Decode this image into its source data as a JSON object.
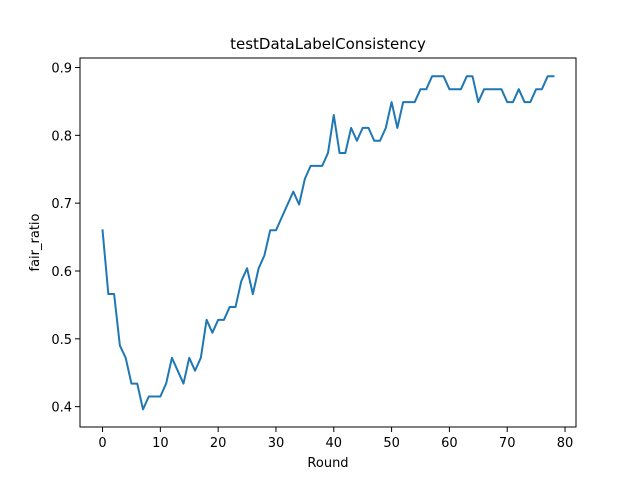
{
  "chart_data": {
    "type": "line",
    "title": "testDataLabelConsistency",
    "xlabel": "Round",
    "ylabel": "fair_ratio",
    "xlim": [
      -3.9,
      81.9
    ],
    "ylim": [
      0.37,
      0.914
    ],
    "xticks": [
      0,
      10,
      20,
      30,
      40,
      50,
      60,
      70,
      80
    ],
    "yticks": [
      0.4,
      0.5,
      0.6,
      0.7,
      0.8,
      0.9
    ],
    "ytick_labels": [
      "0.4",
      "0.5",
      "0.6",
      "0.7",
      "0.8",
      "0.9"
    ],
    "grid": false,
    "legend": "none",
    "line_color": "#1f77b4",
    "series": [
      {
        "x": [
          0,
          1,
          2,
          3,
          4,
          5,
          6,
          7,
          8,
          9,
          10,
          11,
          12,
          13,
          14,
          15,
          16,
          17,
          18,
          19,
          20,
          21,
          22,
          23,
          24,
          25,
          26,
          27,
          28,
          29,
          30,
          31,
          32,
          33,
          34,
          35,
          36,
          37,
          38,
          39,
          40,
          41,
          42,
          43,
          44,
          45,
          46,
          47,
          48,
          49,
          50,
          51,
          52,
          53,
          54,
          55,
          56,
          57,
          58,
          59,
          60,
          61,
          62,
          63,
          64,
          65,
          66,
          67,
          68,
          69,
          70,
          71,
          72,
          73,
          74,
          75,
          76,
          77,
          78
        ],
        "values": [
          0.66,
          0.566,
          0.566,
          0.49,
          0.472,
          0.434,
          0.434,
          0.396,
          0.415,
          0.415,
          0.415,
          0.434,
          0.472,
          0.453,
          0.434,
          0.472,
          0.453,
          0.472,
          0.528,
          0.509,
          0.528,
          0.528,
          0.547,
          0.547,
          0.585,
          0.604,
          0.566,
          0.604,
          0.623,
          0.66,
          0.66,
          0.679,
          0.698,
          0.717,
          0.698,
          0.736,
          0.755,
          0.755,
          0.755,
          0.774,
          0.83,
          0.774,
          0.774,
          0.811,
          0.792,
          0.811,
          0.811,
          0.792,
          0.792,
          0.811,
          0.849,
          0.811,
          0.849,
          0.849,
          0.849,
          0.868,
          0.868,
          0.887,
          0.887,
          0.887,
          0.868,
          0.868,
          0.868,
          0.887,
          0.887,
          0.849,
          0.868,
          0.868,
          0.868,
          0.868,
          0.849,
          0.849,
          0.868,
          0.849,
          0.849,
          0.868,
          0.868,
          0.887,
          0.887
        ]
      }
    ]
  }
}
